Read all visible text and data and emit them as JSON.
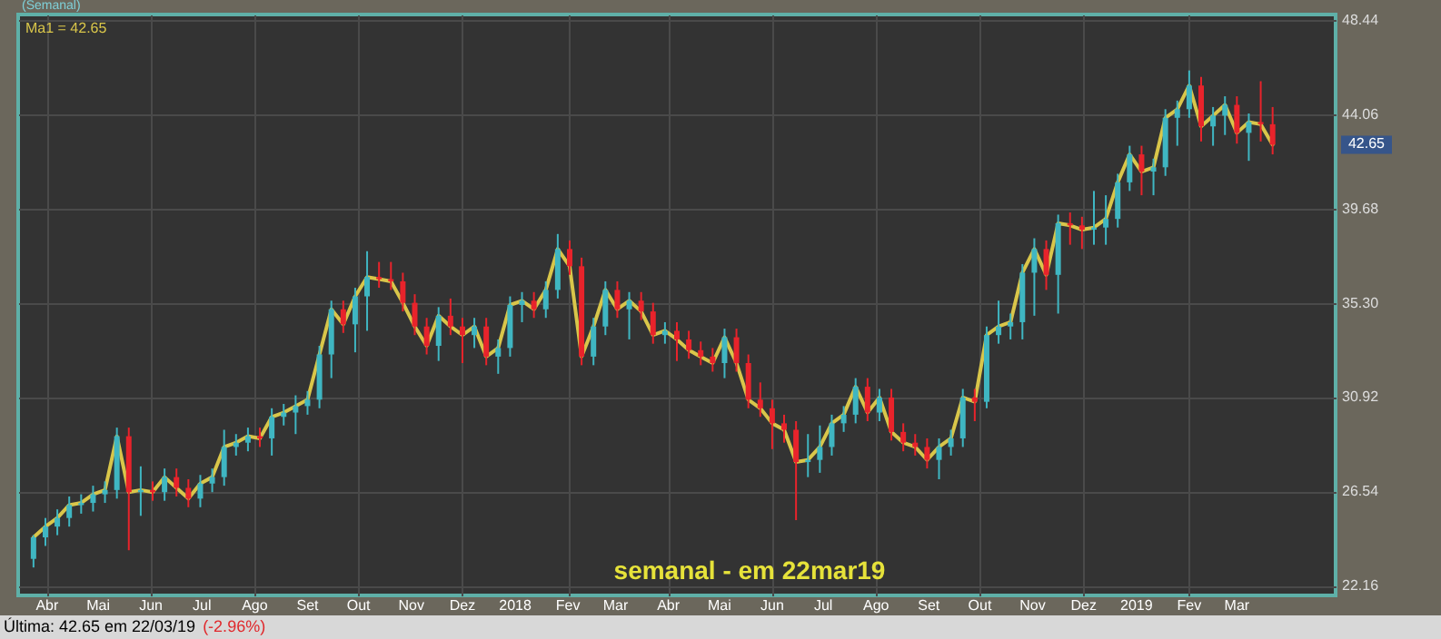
{
  "chart_data": {
    "type": "candlestick",
    "title": "semanal - em 22mar19",
    "annotations": [
      "(Semanal)",
      "Última: 42.65 em 22/03/19",
      "(-2.96%)",
      "42.65"
    ],
    "x": [
      "2017-03-24",
      "2017-03-31",
      "2017-04-07",
      "2017-04-14",
      "2017-04-21",
      "2017-04-28",
      "2017-05-05",
      "2017-05-12",
      "2017-05-19",
      "2017-05-26",
      "2017-06-02",
      "2017-06-09",
      "2017-06-16",
      "2017-06-23",
      "2017-06-30",
      "2017-07-07",
      "2017-07-14",
      "2017-07-21",
      "2017-07-28",
      "2017-08-04",
      "2017-08-11",
      "2017-08-18",
      "2017-08-25",
      "2017-09-01",
      "2017-09-08",
      "2017-09-15",
      "2017-09-22",
      "2017-09-29",
      "2017-10-06",
      "2017-10-13",
      "2017-10-20",
      "2017-10-27",
      "2017-11-03",
      "2017-11-10",
      "2017-11-17",
      "2017-11-24",
      "2017-12-01",
      "2017-12-08",
      "2017-12-15",
      "2017-12-22",
      "2017-12-29",
      "2018-01-05",
      "2018-01-12",
      "2018-01-19",
      "2018-01-26",
      "2018-02-02",
      "2018-02-09",
      "2018-02-16",
      "2018-02-23",
      "2018-03-02",
      "2018-03-09",
      "2018-03-16",
      "2018-03-23",
      "2018-03-30",
      "2018-04-06",
      "2018-04-13",
      "2018-04-20",
      "2018-04-27",
      "2018-05-04",
      "2018-05-11",
      "2018-05-18",
      "2018-05-25",
      "2018-06-01",
      "2018-06-08",
      "2018-06-15",
      "2018-06-22",
      "2018-06-29",
      "2018-07-06",
      "2018-07-13",
      "2018-07-20",
      "2018-07-27",
      "2018-08-03",
      "2018-08-10",
      "2018-08-17",
      "2018-08-24",
      "2018-08-31",
      "2018-09-07",
      "2018-09-14",
      "2018-09-21",
      "2018-09-28",
      "2018-10-05",
      "2018-10-12",
      "2018-10-19",
      "2018-10-26",
      "2018-11-02",
      "2018-11-09",
      "2018-11-16",
      "2018-11-23",
      "2018-11-30",
      "2018-12-07",
      "2018-12-14",
      "2018-12-21",
      "2018-12-28",
      "2019-01-04",
      "2019-01-11",
      "2019-01-18",
      "2019-01-25",
      "2019-02-01",
      "2019-02-08",
      "2019-02-15",
      "2019-02-22",
      "2019-03-01",
      "2019-03-08",
      "2019-03-15",
      "2019-03-22"
    ],
    "xlim": [
      "2017-03-15",
      "2019-04-28"
    ],
    "xticks": [
      {
        "value": "2017-04-01",
        "label": "Abr"
      },
      {
        "value": "2017-05-01",
        "label": "Mai"
      },
      {
        "value": "2017-06-01",
        "label": "Jun"
      },
      {
        "value": "2017-07-01",
        "label": "Jul"
      },
      {
        "value": "2017-08-01",
        "label": "Ago"
      },
      {
        "value": "2017-09-01",
        "label": "Set"
      },
      {
        "value": "2017-10-01",
        "label": "Out"
      },
      {
        "value": "2017-11-01",
        "label": "Nov"
      },
      {
        "value": "2017-12-01",
        "label": "Dez"
      },
      {
        "value": "2018-01-01",
        "label": "2018"
      },
      {
        "value": "2018-02-01",
        "label": "Fev"
      },
      {
        "value": "2018-03-01",
        "label": "Mar"
      },
      {
        "value": "2018-04-01",
        "label": "Abr"
      },
      {
        "value": "2018-05-01",
        "label": "Mai"
      },
      {
        "value": "2018-06-01",
        "label": "Jun"
      },
      {
        "value": "2018-07-01",
        "label": "Jul"
      },
      {
        "value": "2018-08-01",
        "label": "Ago"
      },
      {
        "value": "2018-09-01",
        "label": "Set"
      },
      {
        "value": "2018-10-01",
        "label": "Out"
      },
      {
        "value": "2018-11-01",
        "label": "Nov"
      },
      {
        "value": "2018-12-01",
        "label": "Dez"
      },
      {
        "value": "2019-01-01",
        "label": "2019"
      },
      {
        "value": "2019-02-01",
        "label": "Fev"
      },
      {
        "value": "2019-03-01",
        "label": "Mar"
      }
    ],
    "ylim": [
      21.7,
      48.7
    ],
    "yticks": [
      22.16,
      26.54,
      30.92,
      {
        "value": 35.3,
        "label": "35.30"
      },
      39.68,
      44.06,
      48.44
    ],
    "grid": true,
    "legend": "top left",
    "marker": "none",
    "line_style": "solid",
    "series": [
      {
        "type": "candlestick",
        "ohlc": [
          [
            23.4,
            24.5,
            23.0,
            24.4
          ],
          [
            24.4,
            25.3,
            24.0,
            24.9
          ],
          [
            24.9,
            25.7,
            24.5,
            25.3
          ],
          [
            25.3,
            26.3,
            24.9,
            25.9
          ],
          [
            25.9,
            26.4,
            25.5,
            26.0
          ],
          [
            26.0,
            26.8,
            25.6,
            26.4
          ],
          [
            26.4,
            27.0,
            26.0,
            26.6
          ],
          [
            26.6,
            29.5,
            26.2,
            29.1
          ],
          [
            29.1,
            29.5,
            23.8,
            26.5
          ],
          [
            26.5,
            27.7,
            25.4,
            26.6
          ],
          [
            26.6,
            27.0,
            26.1,
            26.5
          ],
          [
            26.5,
            27.6,
            26.1,
            27.2
          ],
          [
            27.2,
            27.6,
            26.3,
            26.7
          ],
          [
            26.7,
            27.1,
            25.8,
            26.2
          ],
          [
            26.2,
            27.3,
            25.8,
            26.9
          ],
          [
            26.9,
            27.6,
            26.5,
            27.2
          ],
          [
            27.2,
            29.4,
            26.8,
            28.6
          ],
          [
            28.6,
            29.2,
            28.2,
            28.8
          ],
          [
            28.8,
            29.5,
            28.4,
            29.1
          ],
          [
            29.1,
            29.5,
            28.6,
            29.0
          ],
          [
            29.0,
            30.4,
            28.2,
            30.0
          ],
          [
            30.0,
            30.6,
            29.6,
            30.2
          ],
          [
            30.2,
            31.0,
            29.2,
            30.5
          ],
          [
            30.5,
            31.2,
            30.1,
            30.8
          ],
          [
            30.8,
            33.3,
            30.4,
            32.9
          ],
          [
            32.9,
            35.4,
            31.8,
            35.0
          ],
          [
            35.0,
            35.4,
            33.9,
            34.3
          ],
          [
            34.3,
            36.0,
            33.0,
            35.6
          ],
          [
            35.6,
            37.7,
            34.0,
            36.5
          ],
          [
            36.5,
            37.2,
            36.0,
            36.4
          ],
          [
            36.4,
            37.2,
            35.9,
            36.3
          ],
          [
            36.3,
            36.7,
            34.9,
            35.3
          ],
          [
            35.3,
            35.7,
            33.8,
            34.2
          ],
          [
            34.2,
            34.6,
            32.9,
            33.3
          ],
          [
            33.3,
            35.1,
            32.6,
            34.7
          ],
          [
            34.7,
            35.5,
            33.8,
            34.2
          ],
          [
            34.2,
            34.6,
            32.5,
            33.8
          ],
          [
            33.8,
            34.6,
            33.2,
            34.2
          ],
          [
            34.2,
            34.6,
            32.4,
            32.8
          ],
          [
            32.8,
            33.6,
            32.0,
            33.2
          ],
          [
            33.2,
            35.6,
            32.8,
            35.2
          ],
          [
            35.2,
            35.8,
            34.4,
            35.4
          ],
          [
            35.4,
            35.8,
            34.6,
            35.0
          ],
          [
            35.0,
            36.3,
            34.6,
            35.9
          ],
          [
            35.9,
            38.5,
            35.5,
            37.8
          ],
          [
            37.8,
            38.2,
            36.6,
            37.0
          ],
          [
            37.0,
            37.4,
            32.4,
            32.8
          ],
          [
            32.8,
            34.6,
            32.4,
            34.2
          ],
          [
            34.2,
            36.3,
            33.8,
            35.9
          ],
          [
            35.9,
            36.3,
            34.6,
            35.0
          ],
          [
            35.0,
            35.8,
            33.6,
            35.4
          ],
          [
            35.4,
            35.8,
            34.5,
            34.9
          ],
          [
            34.9,
            35.3,
            33.4,
            33.8
          ],
          [
            33.8,
            34.4,
            33.4,
            34.0
          ],
          [
            34.0,
            34.4,
            32.6,
            33.6
          ],
          [
            33.6,
            34.0,
            32.7,
            33.1
          ],
          [
            33.1,
            33.5,
            32.4,
            32.8
          ],
          [
            32.8,
            33.2,
            32.1,
            32.5
          ],
          [
            32.5,
            34.1,
            31.8,
            33.7
          ],
          [
            33.7,
            34.1,
            32.1,
            32.5
          ],
          [
            32.5,
            32.9,
            30.4,
            30.8
          ],
          [
            30.8,
            31.6,
            30.0,
            30.4
          ],
          [
            30.4,
            30.8,
            28.5,
            29.7
          ],
          [
            29.7,
            30.1,
            28.8,
            29.4
          ],
          [
            29.4,
            29.8,
            25.2,
            27.9
          ],
          [
            27.9,
            29.2,
            27.2,
            28.0
          ],
          [
            28.0,
            29.6,
            27.4,
            28.6
          ],
          [
            28.6,
            30.1,
            28.2,
            29.7
          ],
          [
            29.7,
            30.5,
            29.3,
            30.1
          ],
          [
            30.1,
            31.8,
            29.7,
            31.4
          ],
          [
            31.4,
            31.8,
            29.8,
            30.2
          ],
          [
            30.2,
            31.3,
            29.8,
            30.9
          ],
          [
            30.9,
            31.3,
            28.9,
            29.3
          ],
          [
            29.3,
            29.7,
            28.4,
            28.8
          ],
          [
            28.8,
            29.2,
            28.2,
            28.6
          ],
          [
            28.6,
            29.0,
            27.6,
            28.0
          ],
          [
            28.0,
            29.0,
            27.1,
            28.6
          ],
          [
            28.6,
            29.4,
            28.2,
            29.0
          ],
          [
            29.0,
            31.3,
            28.6,
            30.9
          ],
          [
            30.9,
            31.3,
            29.8,
            30.7
          ],
          [
            30.7,
            34.2,
            30.4,
            33.8
          ],
          [
            33.8,
            35.4,
            33.4,
            34.2
          ],
          [
            34.2,
            34.8,
            33.6,
            34.4
          ],
          [
            34.4,
            37.1,
            33.6,
            36.7
          ],
          [
            36.7,
            38.3,
            34.7,
            37.8
          ],
          [
            37.8,
            38.2,
            35.9,
            36.6
          ],
          [
            36.6,
            39.4,
            34.8,
            39.0
          ],
          [
            39.0,
            39.5,
            38.0,
            38.9
          ],
          [
            38.9,
            39.3,
            37.8,
            38.7
          ],
          [
            38.7,
            40.5,
            38.0,
            38.8
          ],
          [
            38.8,
            40.3,
            38.0,
            39.2
          ],
          [
            39.2,
            41.3,
            38.8,
            40.9
          ],
          [
            40.9,
            42.6,
            40.5,
            42.2
          ],
          [
            42.2,
            42.6,
            40.3,
            41.4
          ],
          [
            41.4,
            42.0,
            40.3,
            41.6
          ],
          [
            41.6,
            44.3,
            41.2,
            43.9
          ],
          [
            43.9,
            44.7,
            42.6,
            44.3
          ],
          [
            44.3,
            46.1,
            43.9,
            45.4
          ],
          [
            45.4,
            45.8,
            42.8,
            43.5
          ],
          [
            43.5,
            44.4,
            42.6,
            44.0
          ],
          [
            44.0,
            44.9,
            43.1,
            44.5
          ],
          [
            44.5,
            44.9,
            42.7,
            43.2
          ],
          [
            43.2,
            44.1,
            41.9,
            43.7
          ],
          [
            43.7,
            45.6,
            42.8,
            43.6
          ],
          [
            43.6,
            44.4,
            42.2,
            42.65
          ]
        ],
        "colors": [
          "#3fb6c2",
          "#3fb6c2",
          "#3fb6c2",
          "#3fb6c2",
          "#3fb6c2",
          "#3fb6c2",
          "#3fb6c2",
          "#3fb6c2",
          "#e8232b",
          "#3fb6c2",
          "#e8232b",
          "#3fb6c2",
          "#e8232b",
          "#e8232b",
          "#3fb6c2",
          "#3fb6c2",
          "#3fb6c2",
          "#3fb6c2",
          "#3fb6c2",
          "#e8232b",
          "#3fb6c2",
          "#3fb6c2",
          "#3fb6c2",
          "#3fb6c2",
          "#3fb6c2",
          "#3fb6c2",
          "#e8232b",
          "#3fb6c2",
          "#3fb6c2",
          "#e8232b",
          "#e8232b",
          "#e8232b",
          "#e8232b",
          "#e8232b",
          "#3fb6c2",
          "#e8232b",
          "#e8232b",
          "#3fb6c2",
          "#e8232b",
          "#3fb6c2",
          "#3fb6c2",
          "#3fb6c2",
          "#e8232b",
          "#3fb6c2",
          "#3fb6c2",
          "#e8232b",
          "#e8232b",
          "#3fb6c2",
          "#3fb6c2",
          "#e8232b",
          "#3fb6c2",
          "#e8232b",
          "#e8232b",
          "#3fb6c2",
          "#e8232b",
          "#e8232b",
          "#e8232b",
          "#e8232b",
          "#3fb6c2",
          "#e8232b",
          "#e8232b",
          "#e8232b",
          "#e8232b",
          "#e8232b",
          "#e8232b",
          "#3fb6c2",
          "#3fb6c2",
          "#3fb6c2",
          "#3fb6c2",
          "#3fb6c2",
          "#e8232b",
          "#3fb6c2",
          "#e8232b",
          "#e8232b",
          "#e8232b",
          "#e8232b",
          "#3fb6c2",
          "#3fb6c2",
          "#3fb6c2",
          "#e8232b",
          "#3fb6c2",
          "#3fb6c2",
          "#3fb6c2",
          "#3fb6c2",
          "#3fb6c2",
          "#e8232b",
          "#3fb6c2",
          "#e8232b",
          "#e8232b",
          "#3fb6c2",
          "#3fb6c2",
          "#3fb6c2",
          "#3fb6c2",
          "#e8232b",
          "#3fb6c2",
          "#3fb6c2",
          "#3fb6c2",
          "#3fb6c2",
          "#e8232b",
          "#3fb6c2",
          "#3fb6c2",
          "#e8232b",
          "#3fb6c2",
          "#e8232b",
          "#e8232b"
        ]
      },
      {
        "type": "line",
        "name": "Ma1 = 42.65",
        "color": "#d9c64a",
        "values": [
          24.4,
          24.9,
          25.3,
          25.9,
          26.0,
          26.4,
          26.6,
          29.1,
          26.5,
          26.6,
          26.5,
          27.2,
          26.7,
          26.2,
          26.9,
          27.2,
          28.6,
          28.8,
          29.1,
          29.0,
          30.0,
          30.2,
          30.5,
          30.8,
          32.9,
          35.0,
          34.3,
          35.6,
          36.5,
          36.4,
          36.3,
          35.3,
          34.2,
          33.3,
          34.7,
          34.2,
          33.8,
          34.2,
          32.8,
          33.2,
          35.2,
          35.4,
          35.0,
          35.9,
          37.8,
          37.0,
          32.8,
          34.2,
          35.9,
          35.0,
          35.4,
          34.9,
          33.8,
          34.0,
          33.6,
          33.1,
          32.8,
          32.5,
          33.7,
          32.5,
          30.8,
          30.4,
          29.7,
          29.4,
          27.9,
          28.0,
          28.6,
          29.7,
          30.1,
          31.4,
          30.2,
          30.9,
          29.3,
          28.8,
          28.6,
          28.0,
          28.6,
          29.0,
          30.9,
          30.7,
          33.8,
          34.2,
          34.4,
          36.7,
          37.8,
          36.6,
          39.0,
          38.9,
          38.7,
          38.8,
          39.2,
          40.9,
          42.2,
          41.4,
          41.6,
          43.9,
          44.3,
          45.4,
          43.5,
          44.0,
          44.5,
          43.2,
          43.7,
          43.6,
          42.65
        ]
      }
    ]
  }
}
